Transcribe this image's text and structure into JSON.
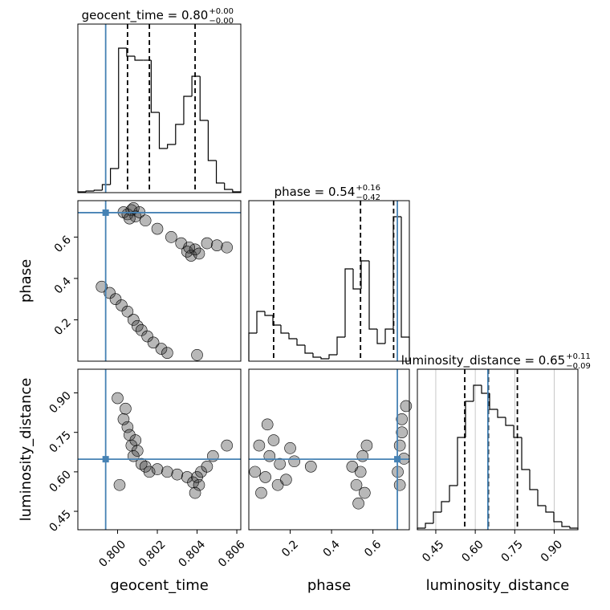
{
  "chart_data": [
    {
      "type": "histogram",
      "title": "geocent_time = 0.80",
      "title_upper": "+0.00",
      "title_lower": "−0.00",
      "bins": [
        0.798,
        0.79841,
        0.79882,
        0.79923,
        0.79964,
        0.80005,
        0.80046,
        0.80087,
        0.80128,
        0.80169,
        0.8021,
        0.80251,
        0.80292,
        0.80333,
        0.80374,
        0.80415,
        0.80456,
        0.80497,
        0.80538,
        0.80579,
        0.8062
      ],
      "values": [
        1,
        2,
        3,
        10,
        30,
        180,
        170,
        165,
        165,
        100,
        55,
        60,
        85,
        120,
        145,
        90,
        40,
        12,
        4,
        1
      ],
      "xlim": [
        0.798,
        0.8062
      ],
      "ylim": [
        0,
        210
      ],
      "quantiles": [
        0.8005,
        0.8016,
        0.8039
      ],
      "truth": 0.7994,
      "color": "#000000",
      "truth_color": "#4682b4"
    },
    {
      "type": "scatter",
      "x": [
        0.8003,
        0.8005,
        0.8007,
        0.8009,
        0.8011,
        0.8006,
        0.8008,
        0.8014,
        0.802,
        0.8027,
        0.8032,
        0.8035,
        0.8037,
        0.8039,
        0.8041,
        0.8036,
        0.8045,
        0.805,
        0.8055,
        0.7996,
        0.7999,
        0.8002,
        0.8005,
        0.8008,
        0.801,
        0.8012,
        0.8015,
        0.8018,
        0.8022,
        0.8025,
        0.7992,
        0.804
      ],
      "y": [
        0.72,
        0.71,
        0.73,
        0.7,
        0.72,
        0.69,
        0.74,
        0.68,
        0.64,
        0.6,
        0.57,
        0.53,
        0.51,
        0.54,
        0.52,
        0.55,
        0.57,
        0.56,
        0.55,
        0.33,
        0.3,
        0.27,
        0.24,
        0.2,
        0.17,
        0.15,
        0.12,
        0.09,
        0.06,
        0.04,
        0.36,
        0.03
      ],
      "xlim": [
        0.798,
        0.8062
      ],
      "ylim": [
        0,
        0.776
      ],
      "yticks": [
        0.2,
        0.4,
        0.6
      ],
      "ylabel": "phase",
      "truth_x": 0.7994,
      "truth_y": 0.718,
      "color": "#333333",
      "truth_color": "#4682b4"
    },
    {
      "type": "histogram",
      "title": "phase = 0.54",
      "title_upper": "+0.16",
      "title_lower": "−0.42",
      "bins": [
        0,
        0.0388,
        0.0776,
        0.1164,
        0.1552,
        0.194,
        0.2328,
        0.2716,
        0.3104,
        0.3492,
        0.388,
        0.4268,
        0.4656,
        0.5044,
        0.5432,
        0.582,
        0.6208,
        0.6596,
        0.6984,
        0.7372,
        0.776
      ],
      "values": [
        35,
        62,
        57,
        45,
        35,
        28,
        20,
        10,
        5,
        3,
        8,
        30,
        115,
        90,
        125,
        40,
        22,
        40,
        180,
        30
      ],
      "xlim": [
        0,
        0.776
      ],
      "ylim": [
        0,
        200
      ],
      "quantiles": [
        0.12,
        0.54,
        0.7
      ],
      "truth": 0.718,
      "color": "#000000",
      "truth_color": "#4682b4"
    },
    {
      "type": "scatter",
      "x": [
        0.8003,
        0.8005,
        0.8006,
        0.8007,
        0.8008,
        0.8009,
        0.801,
        0.8012,
        0.8014,
        0.8004,
        0.8016,
        0.802,
        0.8025,
        0.803,
        0.8035,
        0.8038,
        0.804,
        0.8041,
        0.8042,
        0.8045,
        0.8048,
        0.8039,
        0.8,
        0.8055,
        0.8001
      ],
      "y": [
        0.8,
        0.77,
        0.74,
        0.7,
        0.66,
        0.72,
        0.68,
        0.63,
        0.62,
        0.84,
        0.6,
        0.61,
        0.6,
        0.59,
        0.58,
        0.56,
        0.58,
        0.55,
        0.6,
        0.62,
        0.66,
        0.52,
        0.88,
        0.7,
        0.55
      ],
      "xlim": [
        0.798,
        0.8062
      ],
      "ylim": [
        0.38,
        0.99
      ],
      "xticks": [
        {
          "value": 0.8,
          "label": "0.800"
        },
        {
          "value": 0.802,
          "label": "0.802"
        },
        {
          "value": 0.804,
          "label": "0.804"
        },
        {
          "value": 0.806,
          "label": "0.806"
        }
      ],
      "yticks": [
        0.45,
        {
          "value": 0.6,
          "label": "0.60"
        },
        0.75,
        {
          "value": 0.9,
          "label": "0.90"
        }
      ],
      "xlabel": "geocent_time",
      "ylabel": "luminosity_distance",
      "truth_x": 0.7994,
      "truth_y": 0.648,
      "color": "#333333",
      "truth_color": "#4682b4"
    },
    {
      "type": "scatter",
      "x": [
        0.03,
        0.05,
        0.08,
        0.1,
        0.12,
        0.15,
        0.18,
        0.2,
        0.22,
        0.06,
        0.09,
        0.14,
        0.5,
        0.52,
        0.54,
        0.55,
        0.56,
        0.53,
        0.57,
        0.72,
        0.73,
        0.74,
        0.75,
        0.76,
        0.73,
        0.74,
        0.3
      ],
      "y": [
        0.6,
        0.7,
        0.58,
        0.66,
        0.72,
        0.63,
        0.57,
        0.69,
        0.64,
        0.52,
        0.78,
        0.55,
        0.62,
        0.55,
        0.6,
        0.66,
        0.52,
        0.48,
        0.7,
        0.6,
        0.7,
        0.8,
        0.65,
        0.85,
        0.55,
        0.75,
        0.62
      ],
      "xlim": [
        0,
        0.776
      ],
      "ylim": [
        0.38,
        0.99
      ],
      "xticks": [
        0.2,
        0.4,
        0.6
      ],
      "xlabel": "phase",
      "truth_x": 0.718,
      "truth_y": 0.648,
      "color": "#333333",
      "truth_color": "#4682b4"
    },
    {
      "type": "histogram",
      "title": "luminosity_distance = 0.65",
      "title_upper": "+0.11",
      "title_lower": "−0.09",
      "bins": [
        0.38,
        0.4105,
        0.441,
        0.4715,
        0.502,
        0.5325,
        0.563,
        0.5935,
        0.624,
        0.6545,
        0.685,
        0.7155,
        0.746,
        0.7765,
        0.807,
        0.8375,
        0.868,
        0.8985,
        0.929,
        0.9595,
        0.99
      ],
      "values": [
        2,
        8,
        22,
        35,
        55,
        115,
        160,
        180,
        170,
        150,
        140,
        130,
        115,
        75,
        50,
        30,
        22,
        10,
        4,
        2
      ],
      "xlim": [
        0.38,
        0.99
      ],
      "ylim": [
        0,
        200
      ],
      "xticks": [
        0.45,
        {
          "value": 0.6,
          "label": "0.60"
        },
        0.75,
        {
          "value": 0.9,
          "label": "0.90"
        }
      ],
      "xlabel": "luminosity_distance",
      "quantiles": [
        0.56,
        0.65,
        0.76
      ],
      "truth": 0.648,
      "color": "#000000",
      "truth_color": "#4682b4"
    }
  ]
}
